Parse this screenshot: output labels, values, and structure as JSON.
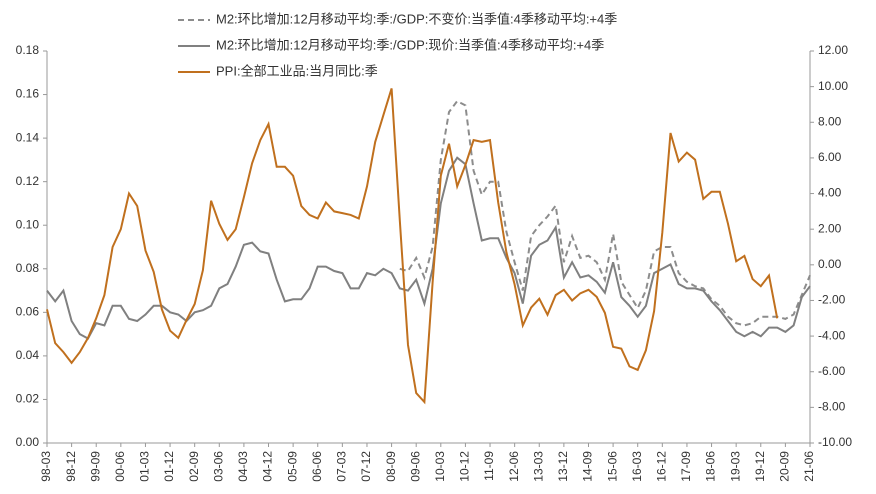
{
  "chart_data": {
    "type": "line",
    "categories": [
      "98-03",
      null,
      null,
      "98-12",
      null,
      null,
      "99-09",
      null,
      null,
      "00-06",
      null,
      null,
      "01-03",
      null,
      null,
      "01-12",
      null,
      null,
      "02-09",
      null,
      null,
      "03-06",
      null,
      null,
      "04-03",
      null,
      null,
      "04-12",
      null,
      null,
      "05-09",
      null,
      null,
      "06-06",
      null,
      null,
      "07-03",
      null,
      null,
      "07-12",
      null,
      null,
      "08-09",
      null,
      null,
      "09-06",
      null,
      null,
      "10-03",
      null,
      null,
      "10-12",
      null,
      null,
      "11-09",
      null,
      null,
      "12-06",
      null,
      null,
      "13-03",
      null,
      null,
      "13-12",
      null,
      null,
      "14-09",
      null,
      null,
      "15-06",
      null,
      null,
      "16-03",
      null,
      null,
      "16-12",
      null,
      null,
      "17-09",
      null,
      null,
      "18-06",
      null,
      null,
      "19-03",
      null,
      null,
      "19-12",
      null,
      null,
      "20-09",
      null,
      null,
      "21-06"
    ],
    "series": [
      {
        "name": "M2:环比增加:12月移动平均:季:/GDP:不变价:当季值:4季移动平均:+4季",
        "color": "#8c8c8c",
        "dash": true,
        "axis": "y",
        "values": [
          null,
          null,
          null,
          null,
          null,
          null,
          null,
          null,
          null,
          null,
          null,
          null,
          null,
          null,
          null,
          null,
          null,
          null,
          null,
          null,
          null,
          null,
          null,
          null,
          null,
          null,
          null,
          null,
          null,
          null,
          null,
          null,
          null,
          null,
          null,
          null,
          null,
          null,
          null,
          null,
          null,
          null,
          null,
          0.08,
          0.079,
          0.085,
          0.076,
          0.09,
          0.13,
          0.152,
          0.157,
          0.155,
          0.125,
          0.114,
          0.12,
          0.12,
          0.097,
          0.083,
          0.07,
          0.095,
          0.1,
          0.104,
          0.109,
          0.083,
          0.095,
          0.085,
          0.086,
          0.083,
          0.075,
          0.096,
          0.074,
          0.068,
          0.062,
          0.07,
          0.088,
          0.09,
          0.09,
          0.078,
          0.074,
          0.072,
          0.071,
          0.066,
          0.063,
          0.058,
          0.055,
          0.054,
          0.055,
          0.058,
          0.058,
          0.058,
          0.057,
          0.059,
          0.068,
          0.077
        ]
      },
      {
        "name": "M2:环比增加:12月移动平均:季:/GDP:现价:当季值:4季移动平均:+4季",
        "color": "#808080",
        "dash": false,
        "axis": "y",
        "values": [
          0.07,
          0.065,
          0.07,
          0.056,
          0.05,
          0.048,
          0.055,
          0.054,
          0.063,
          0.063,
          0.057,
          0.056,
          0.059,
          0.063,
          0.063,
          0.06,
          0.059,
          0.056,
          0.06,
          0.061,
          0.063,
          0.071,
          0.073,
          0.081,
          0.091,
          0.092,
          0.088,
          0.087,
          0.075,
          0.065,
          0.066,
          0.066,
          0.071,
          0.081,
          0.081,
          0.079,
          0.078,
          0.071,
          0.071,
          0.078,
          0.077,
          0.08,
          0.078,
          0.071,
          0.07,
          0.075,
          0.064,
          0.08,
          0.11,
          0.125,
          0.131,
          0.128,
          0.11,
          0.093,
          0.094,
          0.094,
          0.085,
          0.078,
          0.064,
          0.086,
          0.091,
          0.093,
          0.099,
          0.076,
          0.083,
          0.076,
          0.077,
          0.074,
          0.069,
          0.083,
          0.067,
          0.063,
          0.058,
          0.063,
          0.078,
          0.08,
          0.082,
          0.073,
          0.071,
          0.071,
          0.07,
          0.065,
          0.061,
          0.056,
          0.051,
          0.049,
          0.051,
          0.049,
          0.053,
          0.053,
          0.051,
          0.054,
          0.067,
          0.072
        ]
      },
      {
        "name": "PPI:全部工业品:当月同比:季",
        "color": "#c0701e",
        "dash": false,
        "axis": "y2",
        "values": [
          -2.5,
          -4.4,
          -4.9,
          -5.5,
          -4.9,
          -4.1,
          -3.0,
          -1.7,
          1.0,
          2.0,
          4.0,
          3.3,
          0.8,
          -0.4,
          -2.5,
          -3.7,
          -4.1,
          -3.1,
          -2.2,
          -0.3,
          3.6,
          2.3,
          1.4,
          2.0,
          3.8,
          5.7,
          7.0,
          7.9,
          5.5,
          5.5,
          5.0,
          3.3,
          2.8,
          2.6,
          3.5,
          3.0,
          2.9,
          2.8,
          2.6,
          4.4,
          6.9,
          8.4,
          9.9,
          2.5,
          -4.5,
          -7.2,
          -7.7,
          -1.0,
          5.0,
          6.8,
          4.4,
          5.6,
          7.0,
          6.9,
          7.0,
          3.5,
          0.7,
          -1.1,
          -3.4,
          -2.4,
          -1.9,
          -2.8,
          -1.7,
          -1.4,
          -2.0,
          -1.6,
          -1.4,
          -1.8,
          -2.7,
          -4.6,
          -4.7,
          -5.7,
          -5.9,
          -4.8,
          -2.6,
          1.8,
          7.4,
          5.8,
          6.3,
          5.9,
          3.7,
          4.1,
          4.1,
          2.3,
          0.2,
          0.5,
          -0.8,
          -1.2,
          -0.6,
          -3.0,
          null,
          null,
          null,
          null
        ]
      }
    ],
    "ylim": [
      0,
      0.18
    ],
    "yticks": [
      {
        "value": 0,
        "label": "0.00"
      },
      {
        "value": 0.02,
        "label": "0.02"
      },
      {
        "value": 0.04,
        "label": "0.04"
      },
      {
        "value": 0.06,
        "label": "0.06"
      },
      {
        "value": 0.08,
        "label": "0.08"
      },
      {
        "value": 0.1,
        "label": "0.10"
      },
      {
        "value": 0.12,
        "label": "0.12"
      },
      {
        "value": 0.14,
        "label": "0.14"
      },
      {
        "value": 0.16,
        "label": "0.16"
      },
      {
        "value": 0.18,
        "label": "0.18"
      }
    ],
    "y2lim": [
      -10,
      12
    ],
    "y2ticks": [
      {
        "value": -10,
        "label": "-10.00"
      },
      {
        "value": -8,
        "label": "-8.00"
      },
      {
        "value": -6,
        "label": "-6.00"
      },
      {
        "value": -4,
        "label": "-4.00"
      },
      {
        "value": -2,
        "label": "-2.00"
      },
      {
        "value": 0,
        "label": "0.00"
      },
      {
        "value": 2,
        "label": "2.00"
      },
      {
        "value": 4,
        "label": "4.00"
      },
      {
        "value": 6,
        "label": "6.00"
      },
      {
        "value": 8,
        "label": "8.00"
      },
      {
        "value": 10,
        "label": "10.00"
      },
      {
        "value": 12,
        "label": "12.00"
      }
    ],
    "grid": false,
    "legend": "top"
  }
}
